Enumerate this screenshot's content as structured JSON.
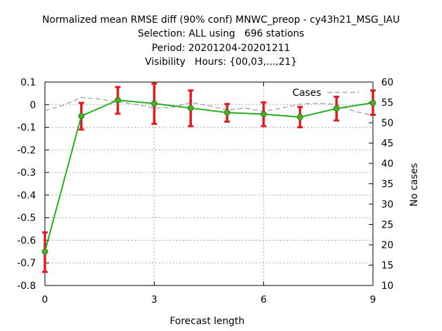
{
  "chart_data": {
    "type": "line",
    "title_lines": [
      "Normalized mean RMSE diff (90% conf) MNWC_preop - cy43h21_MSG_IAU",
      "Selection: ALL using   696 stations",
      "Period: 20201204-20201211",
      "Visibility   Hours: {00,03,...,21}"
    ],
    "xlabel": "Forecast length",
    "ylabel": "",
    "y2label": "No cases",
    "xlim": [
      0,
      9
    ],
    "ylim": [
      -0.8,
      0.1
    ],
    "y2lim": [
      10,
      60
    ],
    "x_ticks": [
      "0",
      "3",
      "6",
      "9"
    ],
    "y_ticks": [
      "0.1",
      "0",
      "-0.1",
      "-0.2",
      "-0.3",
      "-0.4",
      "-0.5",
      "-0.6",
      "-0.7",
      "-0.8"
    ],
    "y2_ticks": [
      "60",
      "55",
      "50",
      "45",
      "40",
      "35",
      "30",
      "25",
      "20",
      "15",
      "10"
    ],
    "grid": true,
    "legend_position": "top-right",
    "series": [
      {
        "name": "",
        "axis": "left",
        "color": "#1fb01f",
        "marker_color": "#55aa22",
        "x": [
          0,
          1,
          2,
          3,
          4,
          5,
          6,
          7,
          8,
          9
        ],
        "values": [
          -0.65,
          -0.05,
          0.02,
          0.005,
          -0.015,
          -0.035,
          -0.042,
          -0.055,
          -0.017,
          0.008
        ]
      },
      {
        "name": "90% conf",
        "type": "errorbar",
        "axis": "left",
        "color": "#e41a1c",
        "x": [
          0,
          1,
          2,
          3,
          4,
          5,
          6,
          7,
          8,
          9
        ],
        "lower": [
          -0.74,
          -0.11,
          -0.04,
          -0.085,
          -0.095,
          -0.075,
          -0.095,
          -0.1,
          -0.07,
          -0.045
        ],
        "upper": [
          -0.565,
          0.008,
          0.078,
          0.093,
          0.063,
          0.003,
          0.01,
          -0.01,
          0.035,
          0.063
        ]
      },
      {
        "name": "Cases",
        "axis": "right",
        "color": "#999999",
        "dash": "dashed",
        "x": [
          0,
          0.5,
          1,
          1.5,
          2,
          2.5,
          3,
          3.5,
          4,
          4.5,
          5,
          5.5,
          6,
          6.5,
          7,
          7.5,
          8,
          8.5,
          9
        ],
        "values": [
          53,
          54.3,
          56.2,
          55.8,
          55.2,
          54.5,
          53.6,
          53.8,
          55,
          54.2,
          53.2,
          53.6,
          52.8,
          53.6,
          54.6,
          54.8,
          54.5,
          52.8,
          51.8
        ]
      }
    ]
  }
}
